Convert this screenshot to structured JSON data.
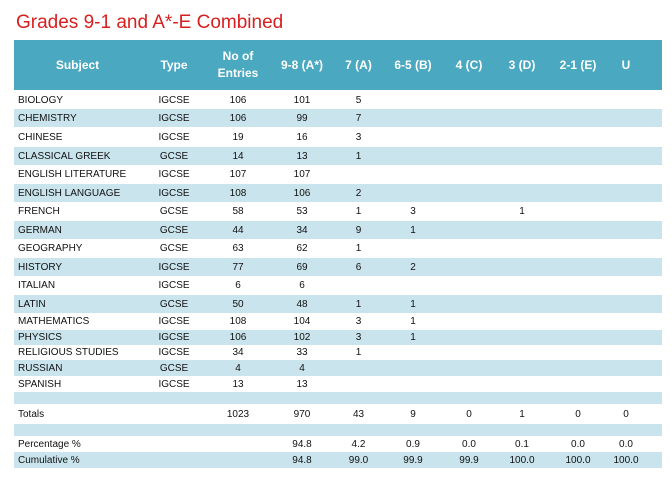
{
  "title": "Grades 9-1 and A*-E Combined",
  "headers": [
    "Subject",
    "Type",
    "No of\nEntries",
    "9-8 (A*)",
    "7 (A)",
    "6-5 (B)",
    "4 (C)",
    "3 (D)",
    "2-1 (E)",
    "U"
  ],
  "rows": [
    [
      "BIOLOGY",
      "IGCSE",
      "106",
      "101",
      "5",
      "",
      "",
      "",
      "",
      ""
    ],
    [
      "CHEMISTRY",
      "IGCSE",
      "106",
      "99",
      "7",
      "",
      "",
      "",
      "",
      ""
    ],
    [
      "CHINESE",
      "IGCSE",
      "19",
      "16",
      "3",
      "",
      "",
      "",
      "",
      ""
    ],
    [
      "CLASSICAL GREEK",
      "GCSE",
      "14",
      "13",
      "1",
      "",
      "",
      "",
      "",
      ""
    ],
    [
      "ENGLISH LITERATURE",
      "IGCSE",
      "107",
      "107",
      "",
      "",
      "",
      "",
      "",
      ""
    ],
    [
      "ENGLISH LANGUAGE",
      "IGCSE",
      "108",
      "106",
      "2",
      "",
      "",
      "",
      "",
      ""
    ],
    [
      "FRENCH",
      "GCSE",
      "58",
      "53",
      "1",
      "3",
      "",
      "1",
      "",
      ""
    ],
    [
      "GERMAN",
      "GCSE",
      "44",
      "34",
      "9",
      "1",
      "",
      "",
      "",
      ""
    ],
    [
      "GEOGRAPHY",
      "GCSE",
      "63",
      "62",
      "1",
      "",
      "",
      "",
      "",
      ""
    ],
    [
      "HISTORY",
      "IGCSE",
      "77",
      "69",
      "6",
      "2",
      "",
      "",
      "",
      ""
    ],
    [
      "ITALIAN",
      "IGCSE",
      "6",
      "6",
      "",
      "",
      "",
      "",
      "",
      ""
    ],
    [
      "LATIN",
      "GCSE",
      "50",
      "48",
      "1",
      "1",
      "",
      "",
      "",
      ""
    ],
    [
      "MATHEMATICS",
      "IGCSE",
      "108",
      "104",
      "3",
      "1",
      "",
      "",
      "",
      ""
    ],
    [
      "PHYSICS",
      "IGCSE",
      "106",
      "102",
      "3",
      "1",
      "",
      "",
      "",
      ""
    ],
    [
      "RELIGIOUS STUDIES",
      "IGCSE",
      "34",
      "33",
      "1",
      "",
      "",
      "",
      "",
      ""
    ],
    [
      "RUSSIAN",
      "GCSE",
      "4",
      "4",
      "",
      "",
      "",
      "",
      "",
      ""
    ],
    [
      "SPANISH",
      "IGCSE",
      "13",
      "13",
      "",
      "",
      "",
      "",
      "",
      ""
    ]
  ],
  "totals": [
    "Totals",
    "",
    "1023",
    "970",
    "43",
    "9",
    "0",
    "1",
    "0",
    "0"
  ],
  "percentage": [
    "Percentage %",
    "",
    "",
    "94.8",
    "4.2",
    "0.9",
    "0.0",
    "0.1",
    "0.0",
    "0.0"
  ],
  "cumulative": [
    "Cumulative %",
    "",
    "",
    "94.8",
    "99.0",
    "99.9",
    "99.9",
    "100.0",
    "100.0",
    "100.0"
  ],
  "colors": {
    "title": "#d81f1f",
    "header": "#4aa8c0",
    "band": "#c9e4ed"
  }
}
